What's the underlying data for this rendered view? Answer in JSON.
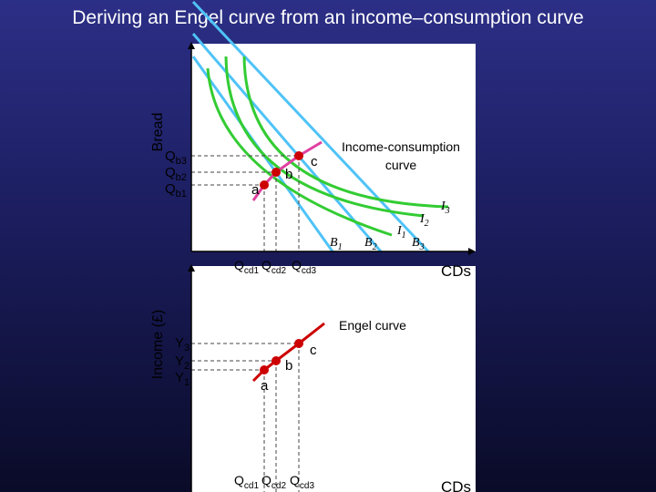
{
  "title": "Deriving an Engel curve from an income–consumption curve",
  "top_panel": {
    "y_axis_label": "Bread",
    "x_axis_label": "CDs",
    "y_ticks": [
      {
        "main": "Q",
        "sub": "b3"
      },
      {
        "main": "Q",
        "sub": "b2"
      },
      {
        "main": "Q",
        "sub": "b1"
      }
    ],
    "x_ticks": [
      {
        "main": "Q",
        "sub": "cd1"
      },
      {
        "main": "Q",
        "sub": "cd2"
      },
      {
        "main": "Q",
        "sub": "cd3"
      }
    ],
    "points": [
      "a",
      "b",
      "c"
    ],
    "curve_label_line1": "Income-consumption",
    "curve_label_line2": "curve",
    "indifference_curves": [
      {
        "main": "I",
        "sub": "1"
      },
      {
        "main": "I",
        "sub": "2"
      },
      {
        "main": "I",
        "sub": "3"
      }
    ],
    "budget_lines": [
      {
        "main": "B",
        "sub": "1"
      },
      {
        "main": "B",
        "sub": "2"
      },
      {
        "main": "B",
        "sub": "3"
      }
    ]
  },
  "bottom_panel": {
    "y_axis_label": "Income (£)",
    "x_axis_label": "CDs",
    "y_ticks": [
      {
        "main": "Y",
        "sub": "3"
      },
      {
        "main": "Y",
        "sub": "2"
      },
      {
        "main": "Y",
        "sub": "1"
      }
    ],
    "x_ticks": [
      {
        "main": "Q",
        "sub": "cd1"
      },
      {
        "main": "Q",
        "sub": "cd2"
      },
      {
        "main": "Q",
        "sub": "cd3"
      }
    ],
    "points": [
      "a",
      "b",
      "c"
    ],
    "curve_label": "Engel curve"
  },
  "colors": {
    "budget_line": "#4fc3f7",
    "indifference_curve": "#33cc33",
    "icc_curve": "#e040a0",
    "engel_curve": "#cc0000",
    "point": "#cc0000",
    "panel_bg": "#ffffff"
  }
}
